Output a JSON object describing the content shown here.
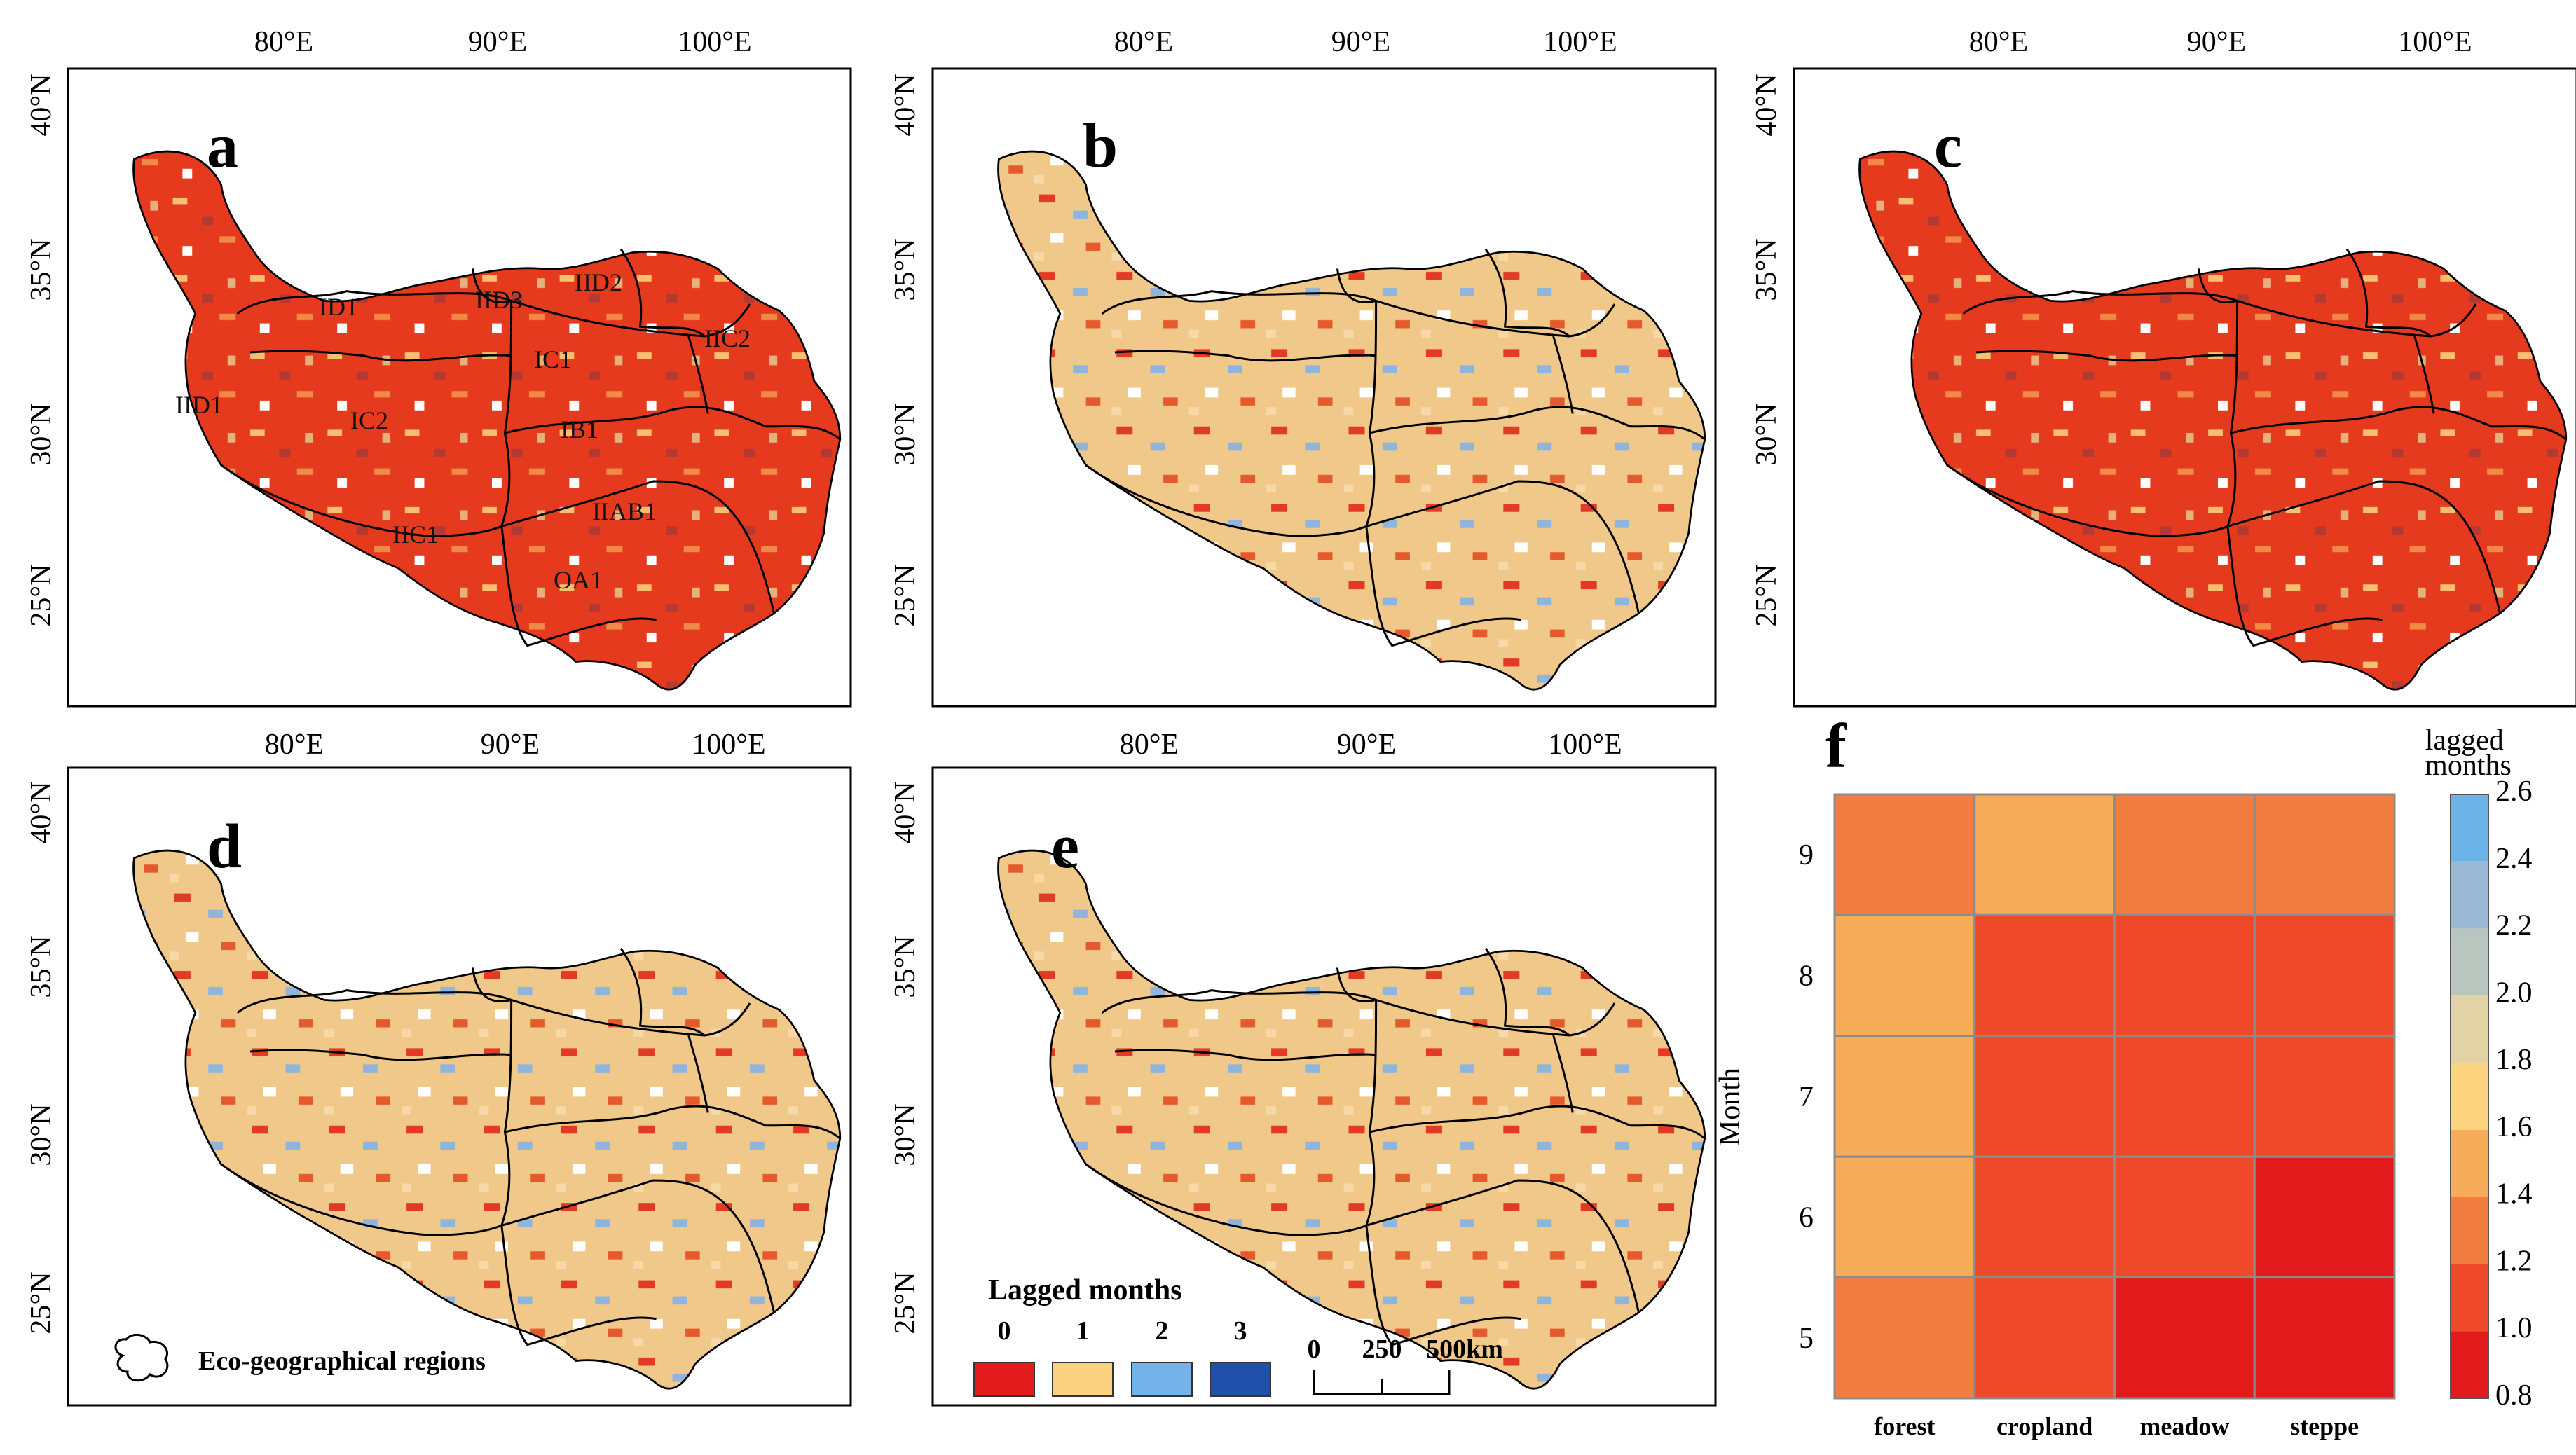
{
  "figure_panels": {
    "map_tick_labels": {
      "lon": [
        "80°E",
        "90°E",
        "100°E"
      ],
      "lat": [
        "40°N",
        "35°N",
        "30°N",
        "25°N"
      ]
    },
    "panels": [
      {
        "letter": "a",
        "has_regions": true
      },
      {
        "letter": "b"
      },
      {
        "letter": "c"
      },
      {
        "letter": "d"
      },
      {
        "letter": "e"
      }
    ],
    "region_labels": [
      "ID1",
      "IID3",
      "IID2",
      "IIC2",
      "IC1",
      "IID1",
      "IC2",
      "IB1",
      "IIC1",
      "IIAB1",
      "OA1"
    ],
    "legend_regions": "Eco-geographical regions",
    "legend_lag": {
      "title": "Lagged months",
      "items": [
        {
          "label": "0",
          "color": "#e31a1c"
        },
        {
          "label": "1",
          "color": "#fcd281"
        },
        {
          "label": "2",
          "color": "#74b3e8"
        },
        {
          "label": "3",
          "color": "#1f4fa8"
        }
      ]
    },
    "scale_bar": {
      "labels": [
        "0",
        "250",
        "500km"
      ]
    }
  },
  "chart_data": {
    "type": "heatmap",
    "panel_letter": "f",
    "categories": [
      "forest",
      "cropland",
      "meadow",
      "steppe"
    ],
    "ylabel": "Month",
    "months": [
      9,
      8,
      7,
      6,
      5
    ],
    "values": [
      [
        1.3,
        1.5,
        1.3,
        1.3
      ],
      [
        1.5,
        1.1,
        1.1,
        1.1
      ],
      [
        1.5,
        1.1,
        1.1,
        1.1
      ],
      [
        1.5,
        1.1,
        1.1,
        0.9
      ],
      [
        1.3,
        1.1,
        0.9,
        0.9
      ]
    ],
    "colorbar": {
      "title": "lagged months",
      "ticks": [
        "2.6",
        "2.4",
        "2.2",
        "2.0",
        "1.8",
        "1.6",
        "1.4",
        "1.2",
        "1.0",
        "0.8"
      ],
      "colors": [
        "#6cb4e8",
        "#9ab8d4",
        "#b9c6c0",
        "#e1d3a4",
        "#fed480",
        "#f7ac5a",
        "#f27d40",
        "#ee4a2a",
        "#e31a1c"
      ],
      "range": [
        0.8,
        2.6
      ]
    }
  }
}
